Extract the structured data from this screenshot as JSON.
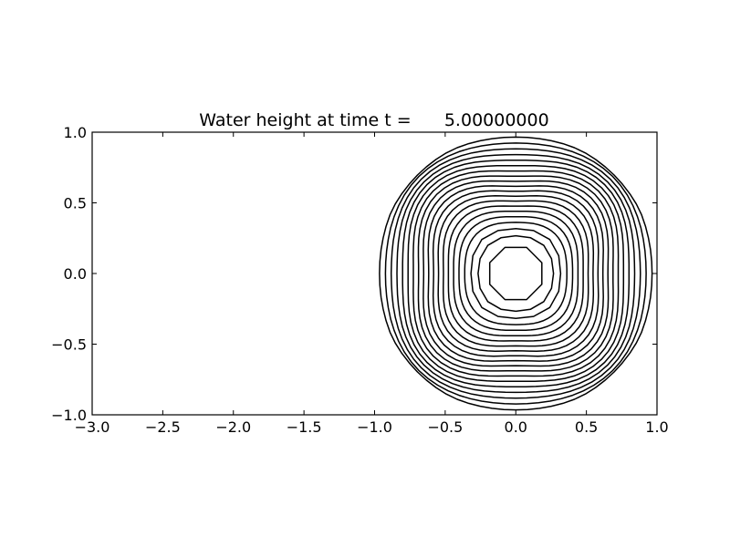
{
  "chart_data": {
    "type": "contour",
    "title": "Water height at time t =      5.00000000",
    "xlabel": "",
    "ylabel": "",
    "xlim": [
      -3.0,
      1.0
    ],
    "ylim": [
      -1.0,
      1.0
    ],
    "grid": false,
    "line_color": "#000000",
    "x_ticks": [
      -3.0,
      -2.5,
      -2.0,
      -1.5,
      -1.0,
      -0.5,
      0.0,
      0.5,
      1.0
    ],
    "x_tick_labels": [
      "−3.0",
      "−2.5",
      "−2.0",
      "−1.5",
      "−1.0",
      "−0.5",
      "0.0",
      "0.5",
      "1.0"
    ],
    "y_ticks": [
      1.0,
      0.5,
      0.0,
      -0.5,
      -1.0
    ],
    "y_tick_labels": [
      "1.0",
      "0.5",
      "0.0",
      "−0.5",
      "−1.0"
    ],
    "contours": {
      "center": [
        0.0,
        0.0
      ],
      "count": 20,
      "inner_radius": 0.2,
      "outer_radius": 0.98,
      "inner_sides": 8
    }
  }
}
